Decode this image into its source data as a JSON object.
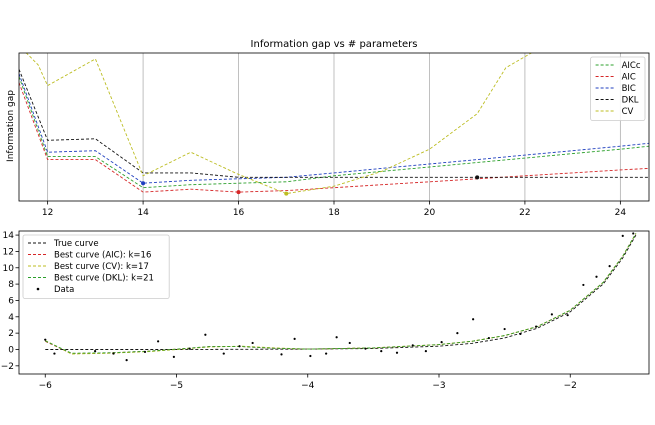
{
  "chart_data": [
    {
      "type": "line",
      "title": "Information gap vs # parameters",
      "xlabel": "",
      "ylabel": "Information gap",
      "xlim": [
        11.4,
        24.6
      ],
      "ylim": [
        0,
        1
      ],
      "y_ticks_shown": false,
      "x_ticks": [
        12,
        14,
        16,
        18,
        20,
        22,
        24
      ],
      "grid": "vertical",
      "legend_position": "top-right",
      "series": [
        {
          "name": "AICc",
          "color": "#2ca02c",
          "dash": "dashed",
          "x": [
            11.4,
            12,
            13,
            14,
            15,
            16,
            17,
            18,
            19,
            20,
            21,
            22,
            23,
            24,
            24.6
          ],
          "y": [
            0.84,
            0.3,
            0.3,
            0.09,
            0.11,
            0.12,
            0.13,
            0.17,
            0.2,
            0.23,
            0.26,
            0.29,
            0.32,
            0.35,
            0.37
          ]
        },
        {
          "name": "AIC",
          "color": "#d62728",
          "dash": "dashed",
          "x": [
            11.4,
            12,
            13,
            14,
            15,
            16,
            17,
            18,
            19,
            20,
            21,
            22,
            23,
            24,
            24.6
          ],
          "y": [
            0.8,
            0.28,
            0.28,
            0.06,
            0.08,
            0.06,
            0.07,
            0.09,
            0.11,
            0.13,
            0.15,
            0.17,
            0.19,
            0.21,
            0.22
          ]
        },
        {
          "name": "BIC",
          "color": "#1f3fbf",
          "dash": "dashed",
          "x": [
            11.4,
            12,
            13,
            14,
            15,
            16,
            17,
            18,
            19,
            20,
            21,
            22,
            23,
            24,
            24.6
          ],
          "y": [
            0.86,
            0.33,
            0.34,
            0.12,
            0.14,
            0.15,
            0.16,
            0.19,
            0.22,
            0.25,
            0.28,
            0.31,
            0.34,
            0.37,
            0.39
          ]
        },
        {
          "name": "DKL",
          "color": "#111111",
          "dash": "dashed",
          "x": [
            11.4,
            12,
            13,
            14,
            15,
            16,
            17,
            18,
            19,
            20,
            21,
            22,
            23,
            24,
            24.6
          ],
          "y": [
            0.89,
            0.41,
            0.42,
            0.19,
            0.19,
            0.16,
            0.16,
            0.16,
            0.16,
            0.16,
            0.16,
            0.16,
            0.16,
            0.16,
            0.16
          ]
        },
        {
          "name": "CV",
          "color": "#bcbd22",
          "dash": "dashed",
          "x": [
            11.4,
            11.8,
            12,
            13,
            14,
            15,
            16,
            17,
            18,
            19,
            20,
            21,
            21.6,
            22.4
          ],
          "y": [
            1.05,
            0.92,
            0.78,
            0.96,
            0.17,
            0.33,
            0.18,
            0.05,
            0.1,
            0.2,
            0.35,
            0.59,
            0.9,
            1.05
          ]
        }
      ],
      "markers": [
        {
          "x": 14,
          "y": 0.12,
          "color": "#1f3fbf"
        },
        {
          "x": 16,
          "y": 0.06,
          "color": "#d62728"
        },
        {
          "x": 17,
          "y": 0.05,
          "color": "#bcbd22"
        },
        {
          "x": 21,
          "y": 0.16,
          "color": "#111111"
        }
      ]
    },
    {
      "type": "line",
      "title": "",
      "xlabel": "",
      "ylabel": "",
      "xlim": [
        -6.2,
        -1.4
      ],
      "ylim": [
        -3,
        14.5
      ],
      "x_ticks": [
        -6,
        -5,
        -4,
        -3,
        -2
      ],
      "x_tick_labels": [
        "−6",
        "−5",
        "−4",
        "−3",
        "−2"
      ],
      "y_ticks": [
        -2,
        0,
        2,
        4,
        6,
        8,
        10,
        12,
        14
      ],
      "y_tick_labels": [
        "−2",
        "0",
        "2",
        "4",
        "6",
        "8",
        "10",
        "12",
        "14"
      ],
      "grid": false,
      "legend_position": "upper-left",
      "series": [
        {
          "name": "True curve",
          "color": "#111111",
          "dash": "dashed",
          "x": [
            -6.0,
            -5.5,
            -5.0,
            -4.5,
            -4.0,
            -3.5,
            -3.0,
            -2.75,
            -2.5,
            -2.25,
            -2.0,
            -1.75,
            -1.6,
            -1.5
          ],
          "y": [
            0.0,
            0.0,
            0.0,
            0.02,
            0.05,
            0.12,
            0.4,
            0.75,
            1.4,
            2.6,
            4.6,
            8.0,
            11.2,
            14.0
          ]
        },
        {
          "name": "Best curve (AIC): k=16",
          "color": "#d62728",
          "dash": "dashed",
          "x": [
            -6.0,
            -5.8,
            -5.5,
            -5.2,
            -5.0,
            -4.75,
            -4.5,
            -4.25,
            -4.0,
            -3.5,
            -3.0,
            -2.75,
            -2.5,
            -2.25,
            -2.0,
            -1.75,
            -1.6,
            -1.5
          ],
          "y": [
            1.0,
            -0.5,
            -0.4,
            -0.2,
            0.05,
            0.35,
            0.35,
            0.15,
            0.05,
            0.2,
            0.6,
            1.0,
            1.7,
            2.8,
            4.8,
            8.2,
            11.4,
            14.2
          ]
        },
        {
          "name": "Best curve (CV): k=17",
          "color": "#bcbd22",
          "dash": "dashed",
          "x": [
            -6.0,
            -5.8,
            -5.5,
            -5.2,
            -5.0,
            -4.75,
            -4.5,
            -4.25,
            -4.0,
            -3.5,
            -3.0,
            -2.75,
            -2.5,
            -2.25,
            -2.0,
            -1.75,
            -1.6,
            -1.5
          ],
          "y": [
            1.1,
            -0.55,
            -0.45,
            -0.25,
            0.0,
            0.3,
            0.4,
            0.2,
            0.05,
            0.2,
            0.6,
            1.0,
            1.7,
            2.8,
            4.8,
            8.2,
            11.4,
            14.2
          ]
        },
        {
          "name": "Best curve (DKL): k=21",
          "color": "#2ca02c",
          "dash": "dashed",
          "x": [
            -6.0,
            -5.8,
            -5.5,
            -5.2,
            -5.0,
            -4.75,
            -4.5,
            -4.25,
            -4.0,
            -3.5,
            -3.0,
            -2.75,
            -2.5,
            -2.25,
            -2.0,
            -1.75,
            -1.6,
            -1.5
          ],
          "y": [
            1.05,
            -0.45,
            -0.4,
            -0.2,
            0.05,
            0.35,
            0.35,
            0.15,
            0.05,
            0.2,
            0.6,
            1.0,
            1.7,
            2.8,
            4.8,
            8.2,
            11.4,
            14.2
          ]
        }
      ],
      "scatter": {
        "name": "Data",
        "color": "#000000",
        "x": [
          -6.0,
          -5.93,
          -5.62,
          -5.48,
          -5.38,
          -5.24,
          -5.14,
          -5.02,
          -4.9,
          -4.78,
          -4.64,
          -4.52,
          -4.42,
          -4.2,
          -4.1,
          -3.98,
          -3.86,
          -3.78,
          -3.68,
          -3.56,
          -3.44,
          -3.32,
          -3.2,
          -3.1,
          -2.98,
          -2.86,
          -2.74,
          -2.62,
          -2.5,
          -2.38,
          -2.26,
          -2.14,
          -2.02,
          -1.9,
          -1.8,
          -1.7,
          -1.6,
          -1.52
        ],
        "y": [
          1.2,
          -0.5,
          -0.2,
          -0.5,
          -1.3,
          -0.3,
          1.0,
          -0.9,
          0.1,
          1.8,
          -0.5,
          0.4,
          0.8,
          -0.6,
          1.3,
          -0.8,
          -0.5,
          1.5,
          0.8,
          0.1,
          -0.2,
          -0.4,
          0.5,
          -0.2,
          0.9,
          2.0,
          3.7,
          1.4,
          2.5,
          1.9,
          2.8,
          4.3,
          4.2,
          7.9,
          8.9,
          10.2,
          13.9,
          14.2
        ]
      }
    }
  ]
}
